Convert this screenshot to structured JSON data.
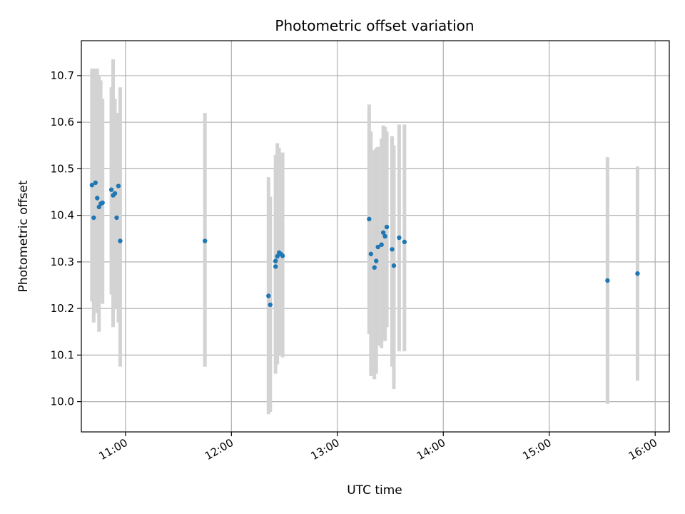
{
  "chart_data": {
    "type": "scatter",
    "title": "Photometric offset variation",
    "xlabel": "UTC time",
    "ylabel": "Photometric offset",
    "x_unit": "UTC time (HH:MM)",
    "xlim": [
      "10:35",
      "16:08"
    ],
    "ylim": [
      9.935,
      10.775
    ],
    "x_ticks": [
      "11:00",
      "12:00",
      "13:00",
      "14:00",
      "15:00",
      "16:00"
    ],
    "y_ticks": [
      "10.0",
      "10.1",
      "10.2",
      "10.3",
      "10.4",
      "10.5",
      "10.6",
      "10.7"
    ],
    "grid": true,
    "legend": "none",
    "marker_color": "#1f77b4",
    "errorbar_color": "#d3d3d3",
    "series": [
      {
        "points": [
          {
            "x": "10:41",
            "y": 10.465,
            "ylow": 10.215,
            "yhigh": 10.715
          },
          {
            "x": "10:42",
            "y": 10.395,
            "ylow": 10.17,
            "yhigh": 10.715
          },
          {
            "x": "10:43",
            "y": 10.47,
            "ylow": 10.225,
            "yhigh": 10.715
          },
          {
            "x": "10:44",
            "y": 10.437,
            "ylow": 10.19,
            "yhigh": 10.715
          },
          {
            "x": "10:45",
            "y": 10.418,
            "ylow": 10.15,
            "yhigh": 10.7
          },
          {
            "x": "10:46",
            "y": 10.425,
            "ylow": 10.23,
            "yhigh": 10.69
          },
          {
            "x": "10:47",
            "y": 10.427,
            "ylow": 10.21,
            "yhigh": 10.65
          },
          {
            "x": "10:52",
            "y": 10.455,
            "ylow": 10.23,
            "yhigh": 10.675
          },
          {
            "x": "10:53",
            "y": 10.443,
            "ylow": 10.16,
            "yhigh": 10.735
          },
          {
            "x": "10:54",
            "y": 10.447,
            "ylow": 10.24,
            "yhigh": 10.65
          },
          {
            "x": "10:55",
            "y": 10.395,
            "ylow": 10.2,
            "yhigh": 10.595
          },
          {
            "x": "10:56",
            "y": 10.463,
            "ylow": 10.17,
            "yhigh": 10.62
          },
          {
            "x": "10:57",
            "y": 10.345,
            "ylow": 10.075,
            "yhigh": 10.675
          },
          {
            "x": "11:45",
            "y": 10.345,
            "ylow": 10.075,
            "yhigh": 10.62
          },
          {
            "x": "12:21",
            "y": 10.227,
            "ylow": 9.973,
            "yhigh": 10.482
          },
          {
            "x": "12:22",
            "y": 10.208,
            "ylow": 9.978,
            "yhigh": 10.44
          },
          {
            "x": "12:25",
            "y": 10.29,
            "ylow": 10.11,
            "yhigh": 10.505
          },
          {
            "x": "12:25",
            "y": 10.302,
            "ylow": 10.06,
            "yhigh": 10.53
          },
          {
            "x": "12:26",
            "y": 10.312,
            "ylow": 10.08,
            "yhigh": 10.555
          },
          {
            "x": "12:27",
            "y": 10.32,
            "ylow": 10.1,
            "yhigh": 10.545
          },
          {
            "x": "12:28",
            "y": 10.317,
            "ylow": 10.105,
            "yhigh": 10.53
          },
          {
            "x": "12:29",
            "y": 10.313,
            "ylow": 10.095,
            "yhigh": 10.535
          },
          {
            "x": "13:18",
            "y": 10.392,
            "ylow": 10.145,
            "yhigh": 10.638
          },
          {
            "x": "13:19",
            "y": 10.317,
            "ylow": 10.055,
            "yhigh": 10.58
          },
          {
            "x": "13:21",
            "y": 10.288,
            "ylow": 10.048,
            "yhigh": 10.54
          },
          {
            "x": "13:22",
            "y": 10.302,
            "ylow": 10.06,
            "yhigh": 10.545
          },
          {
            "x": "13:23",
            "y": 10.332,
            "ylow": 10.12,
            "yhigh": 10.547
          },
          {
            "x": "13:25",
            "y": 10.337,
            "ylow": 10.115,
            "yhigh": 10.565
          },
          {
            "x": "13:26",
            "y": 10.363,
            "ylow": 10.135,
            "yhigh": 10.593
          },
          {
            "x": "13:27",
            "y": 10.355,
            "ylow": 10.13,
            "yhigh": 10.59
          },
          {
            "x": "13:28",
            "y": 10.375,
            "ylow": 10.16,
            "yhigh": 10.58
          },
          {
            "x": "13:31",
            "y": 10.327,
            "ylow": 10.075,
            "yhigh": 10.57
          },
          {
            "x": "13:32",
            "y": 10.292,
            "ylow": 10.027,
            "yhigh": 10.55
          },
          {
            "x": "13:35",
            "y": 10.352,
            "ylow": 10.108,
            "yhigh": 10.595
          },
          {
            "x": "13:38",
            "y": 10.343,
            "ylow": 10.108,
            "yhigh": 10.595
          },
          {
            "x": "15:33",
            "y": 10.26,
            "ylow": 9.995,
            "yhigh": 10.525
          },
          {
            "x": "15:50",
            "y": 10.275,
            "ylow": 10.045,
            "yhigh": 10.505
          }
        ]
      }
    ]
  }
}
